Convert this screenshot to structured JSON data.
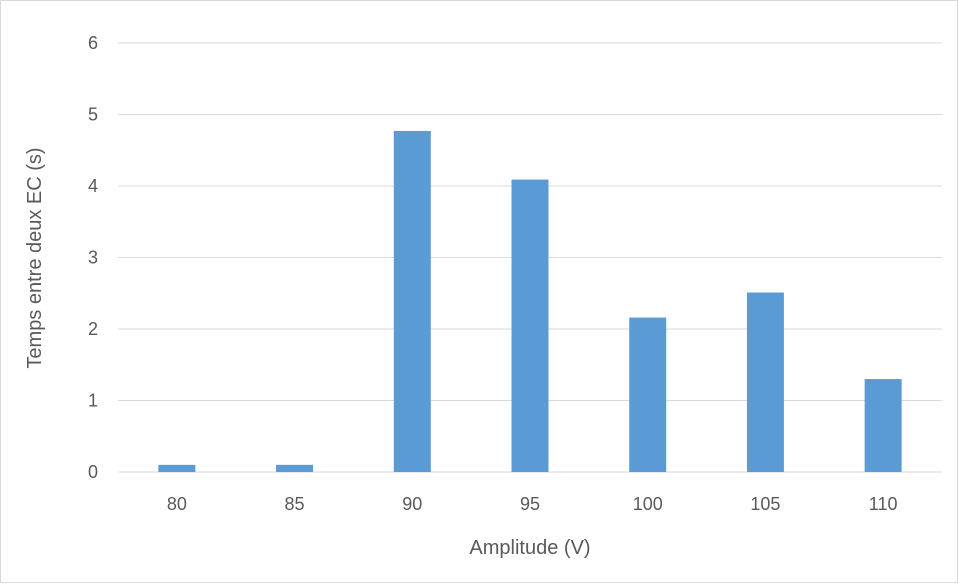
{
  "chart_data": {
    "type": "bar",
    "title": "",
    "xlabel": "Amplitude (V)",
    "ylabel": "Temps entre deux EC (s)",
    "categories": [
      "80",
      "85",
      "90",
      "95",
      "100",
      "105",
      "110"
    ],
    "values": [
      0.1,
      0.1,
      4.77,
      4.09,
      2.16,
      2.51,
      1.3
    ],
    "ylim": [
      0,
      6
    ],
    "yticks": [
      "0",
      "1",
      "2",
      "3",
      "4",
      "5",
      "6"
    ],
    "grid": true,
    "legend": "none",
    "bar_color": "#5b9bd5",
    "grid_color": "#d9d9d9",
    "text_color": "#595959"
  }
}
